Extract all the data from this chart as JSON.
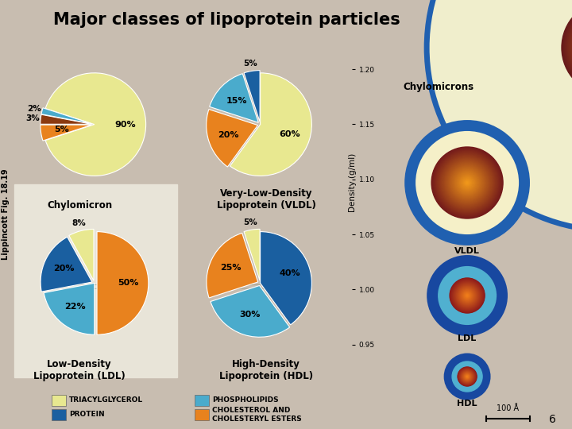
{
  "title": "Major classes of lipoprotein particles",
  "bg_color": "#c8bdb0",
  "ldl_bg_color": "#e8e4d8",
  "pie_charts": [
    {
      "name": "Chylomicron",
      "slices": [
        90,
        5,
        3,
        2
      ],
      "colors": [
        "#e8e890",
        "#e8821e",
        "#8b3a10",
        "#4aabcc"
      ],
      "labels": [
        "90%",
        "5%",
        "3%",
        "2%"
      ],
      "label_inside": [
        true,
        true,
        false,
        false
      ],
      "startangle": 162,
      "counterclock": false,
      "explode": [
        0,
        0.05,
        0.05,
        0.05
      ]
    },
    {
      "name": "Very-Low-Density\nLipoprotein (VLDL)",
      "slices": [
        60,
        20,
        15,
        5
      ],
      "colors": [
        "#e8e890",
        "#e8821e",
        "#4aabcc",
        "#1a5fa0"
      ],
      "labels": [
        "60%",
        "20%",
        "15%",
        "5%"
      ],
      "label_inside": [
        true,
        true,
        true,
        false
      ],
      "startangle": 90,
      "counterclock": false,
      "explode": [
        0,
        0.05,
        0.05,
        0.05
      ]
    },
    {
      "name": "Low-Density\nLipoprotein (LDL)",
      "slices": [
        50,
        22,
        20,
        8
      ],
      "colors": [
        "#e8821e",
        "#4aabcc",
        "#1a5fa0",
        "#e8e890"
      ],
      "labels": [
        "50%",
        "22%",
        "20%",
        "8%"
      ],
      "label_inside": [
        true,
        true,
        true,
        false
      ],
      "startangle": 90,
      "counterclock": false,
      "explode": [
        0.05,
        0,
        0.05,
        0.05
      ]
    },
    {
      "name": "High-Density\nLipoprotein (HDL)",
      "slices": [
        40,
        30,
        25,
        5
      ],
      "colors": [
        "#1a5fa0",
        "#4aabcc",
        "#e8821e",
        "#e8e890"
      ],
      "labels": [
        "40%",
        "30%",
        "25%",
        "5%"
      ],
      "label_inside": [
        true,
        true,
        true,
        false
      ],
      "startangle": 90,
      "counterclock": false,
      "explode": [
        0,
        0.05,
        0.05,
        0.05
      ]
    }
  ],
  "legend_items": [
    {
      "label": "TRIACYLGLYCEROL",
      "color": "#e8e890"
    },
    {
      "label": "PHOSPHOLIPIDS",
      "color": "#4aabcc"
    },
    {
      "label": "PROTEIN",
      "color": "#1a5fa0"
    },
    {
      "label": "CHOLESTEROL AND\nCHOLESTERYL ESTERS",
      "color": "#e8821e"
    }
  ],
  "density_ticks": [
    0.95,
    1.0,
    1.05,
    1.1,
    1.15,
    1.2
  ],
  "density_label": "Density (g/ml)",
  "side_label": "Lippincott Fig. 18.19",
  "page_number": "6"
}
